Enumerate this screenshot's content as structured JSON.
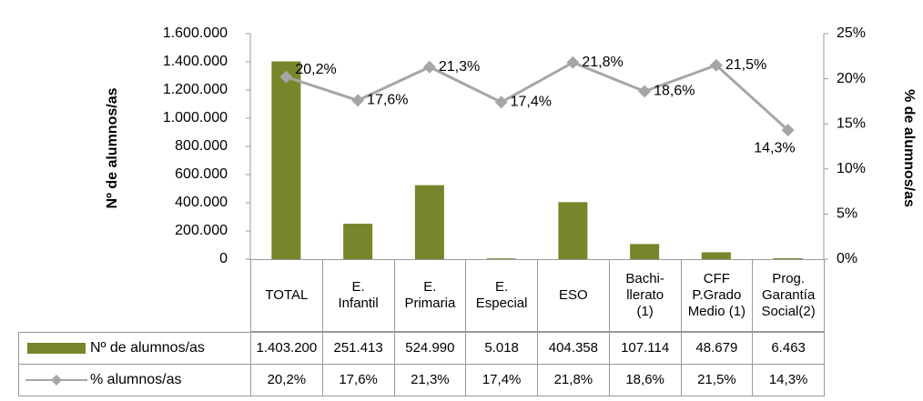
{
  "chart_data": {
    "type": "bar-line",
    "categories": [
      "TOTAL",
      "E.\nInfantil",
      "E.\nPrimaria",
      "E.\nEspecial",
      "ESO",
      "Bachi-\nllerato\n(1)",
      "CFF\nP.Grado\nMedio (1)",
      "Prog.\nGarantía\nSocial(2)"
    ],
    "series": [
      {
        "name": "Nº de alumnos/as",
        "type": "bar",
        "color": "#77862a",
        "values": [
          1403200,
          251413,
          524990,
          5018,
          404358,
          107114,
          48679,
          6463
        ],
        "value_labels": [
          "1.403.200",
          "251.413",
          "524.990",
          "5.018",
          "404.358",
          "107.114",
          "48.679",
          "6.463"
        ]
      },
      {
        "name": "% alumnos/as",
        "type": "line",
        "axis": "y2",
        "color": "#a6a6a6",
        "values": [
          20.2,
          17.6,
          21.3,
          17.4,
          21.8,
          18.6,
          21.5,
          14.3
        ],
        "value_labels": [
          "20,2%",
          "17,6%",
          "21,3%",
          "17,4%",
          "21,8%",
          "18,6%",
          "21,5%",
          "14,3%"
        ]
      }
    ],
    "ylabel": "Nº de alumnos/as",
    "y2label": "% de alumnos/as",
    "ylim": [
      0,
      1600000
    ],
    "yticks": [
      0,
      {
        "value": 200000,
        "label": "200.000"
      },
      {
        "value": 400000,
        "label": "400.000"
      },
      {
        "value": 600000,
        "label": "600.000"
      },
      {
        "value": 800000,
        "label": "800.000"
      },
      {
        "value": 1000000,
        "label": "1.000.000"
      },
      {
        "value": 1200000,
        "label": "1.200.000"
      },
      {
        "value": 1400000,
        "label": "1.400.000"
      },
      {
        "value": 1600000,
        "label": "1.600.000"
      }
    ],
    "y2lim": [
      0,
      25
    ],
    "y2ticks": [
      {
        "value": 0,
        "label": "0%"
      },
      {
        "value": 5,
        "label": "5%"
      },
      {
        "value": 10,
        "label": "10%"
      },
      {
        "value": 15,
        "label": "15%"
      },
      {
        "value": 20,
        "label": "20%"
      },
      {
        "value": 25,
        "label": "25%"
      }
    ]
  }
}
